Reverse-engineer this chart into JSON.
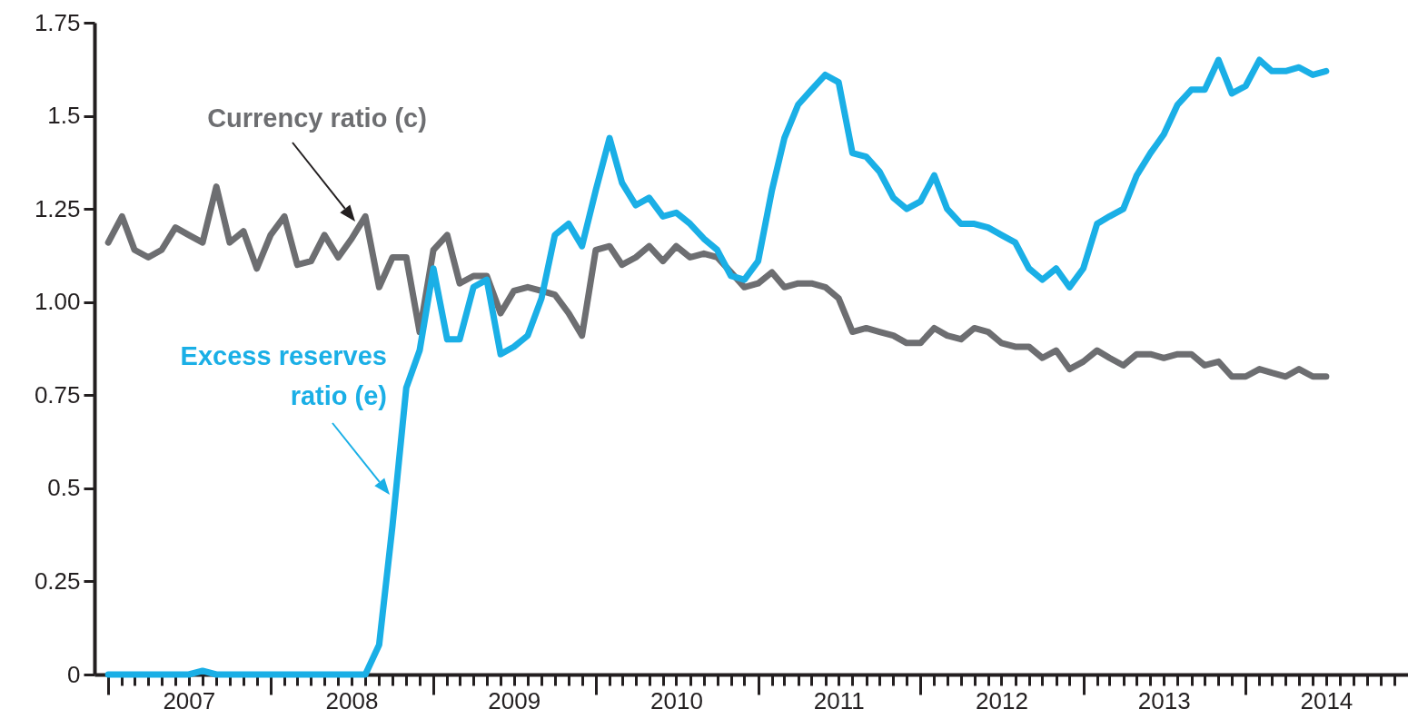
{
  "chart_data": {
    "type": "line",
    "marker": "none",
    "line_style": "solid",
    "x": [
      "2007-01",
      "2007-02",
      "2007-03",
      "2007-04",
      "2007-05",
      "2007-06",
      "2007-07",
      "2007-08",
      "2007-09",
      "2007-10",
      "2007-11",
      "2007-12",
      "2008-01",
      "2008-02",
      "2008-03",
      "2008-04",
      "2008-05",
      "2008-06",
      "2008-07",
      "2008-08",
      "2008-09",
      "2008-10",
      "2008-11",
      "2008-12",
      "2009-01",
      "2009-02",
      "2009-03",
      "2009-04",
      "2009-05",
      "2009-06",
      "2009-07",
      "2009-08",
      "2009-09",
      "2009-10",
      "2009-11",
      "2009-12",
      "2010-01",
      "2010-02",
      "2010-03",
      "2010-04",
      "2010-05",
      "2010-06",
      "2010-07",
      "2010-08",
      "2010-09",
      "2010-10",
      "2010-11",
      "2010-12",
      "2011-01",
      "2011-02",
      "2011-03",
      "2011-04",
      "2011-05",
      "2011-06",
      "2011-07",
      "2011-08",
      "2011-09",
      "2011-10",
      "2011-11",
      "2011-12",
      "2012-01",
      "2012-02",
      "2012-03",
      "2012-04",
      "2012-05",
      "2012-06",
      "2012-07",
      "2012-08",
      "2012-09",
      "2012-10",
      "2012-11",
      "2012-12",
      "2013-01",
      "2013-02",
      "2013-03",
      "2013-04",
      "2013-05",
      "2013-06",
      "2013-07",
      "2013-08",
      "2013-09",
      "2013-10",
      "2013-11",
      "2013-12",
      "2014-01",
      "2014-02",
      "2014-03",
      "2014-04",
      "2014-05",
      "2014-06",
      "2014-07"
    ],
    "series": [
      {
        "name": "Currency ratio (c)",
        "color": "#6d6e71",
        "values": [
          1.16,
          1.23,
          1.14,
          1.12,
          1.14,
          1.2,
          1.18,
          1.16,
          1.31,
          1.16,
          1.19,
          1.09,
          1.18,
          1.23,
          1.1,
          1.11,
          1.18,
          1.12,
          1.17,
          1.23,
          1.04,
          1.12,
          1.12,
          0.92,
          1.14,
          1.18,
          1.05,
          1.07,
          1.07,
          0.97,
          1.03,
          1.04,
          1.03,
          1.02,
          0.97,
          0.91,
          1.14,
          1.15,
          1.1,
          1.12,
          1.15,
          1.11,
          1.15,
          1.12,
          1.13,
          1.12,
          1.08,
          1.04,
          1.05,
          1.08,
          1.04,
          1.05,
          1.05,
          1.04,
          1.01,
          0.92,
          0.93,
          0.92,
          0.91,
          0.89,
          0.89,
          0.93,
          0.91,
          0.9,
          0.93,
          0.92,
          0.89,
          0.88,
          0.88,
          0.85,
          0.87,
          0.82,
          0.84,
          0.87,
          0.85,
          0.83,
          0.86,
          0.86,
          0.85,
          0.86,
          0.86,
          0.83,
          0.84,
          0.8,
          0.8,
          0.82,
          0.81,
          0.8,
          0.82,
          0.8,
          0.8
        ]
      },
      {
        "name": "Excess reserves ratio (e)",
        "color": "#1aafe6",
        "values": [
          0,
          0,
          0,
          0,
          0,
          0,
          0,
          0.01,
          0,
          0,
          0,
          0,
          0,
          0,
          0,
          0,
          0,
          0,
          0,
          0,
          0.08,
          0.4,
          0.77,
          0.87,
          1.09,
          0.9,
          0.9,
          1.04,
          1.06,
          0.86,
          0.88,
          0.91,
          1.01,
          1.18,
          1.21,
          1.15,
          1.3,
          1.44,
          1.32,
          1.26,
          1.28,
          1.23,
          1.24,
          1.21,
          1.17,
          1.14,
          1.07,
          1.06,
          1.11,
          1.3,
          1.44,
          1.53,
          1.57,
          1.61,
          1.59,
          1.4,
          1.39,
          1.35,
          1.28,
          1.25,
          1.27,
          1.34,
          1.25,
          1.21,
          1.21,
          1.2,
          1.18,
          1.16,
          1.09,
          1.06,
          1.09,
          1.04,
          1.09,
          1.21,
          1.23,
          1.25,
          1.34,
          1.4,
          1.45,
          1.53,
          1.57,
          1.57,
          1.65,
          1.56,
          1.58,
          1.65,
          1.62,
          1.62,
          1.63,
          1.61,
          1.62
        ]
      }
    ],
    "xlim": [
      "2006-12",
      "2015-01"
    ],
    "xticks": [
      {
        "value": "2007-01",
        "label": null
      },
      {
        "value": "2007-02",
        "label": null
      },
      {
        "value": "2007-03",
        "label": null
      },
      {
        "value": "2007-04",
        "label": null
      },
      {
        "value": "2007-05",
        "label": null
      },
      {
        "value": "2007-06",
        "label": null
      },
      {
        "value": "2007-07",
        "label": "2007"
      },
      {
        "value": "2007-08",
        "label": null
      },
      {
        "value": "2007-09",
        "label": null
      },
      {
        "value": "2007-10",
        "label": null
      },
      {
        "value": "2007-11",
        "label": null
      },
      {
        "value": "2007-12",
        "label": null
      },
      {
        "value": "2008-01",
        "label": null
      },
      {
        "value": "2008-02",
        "label": null
      },
      {
        "value": "2008-03",
        "label": null
      },
      {
        "value": "2008-04",
        "label": null
      },
      {
        "value": "2008-05",
        "label": null
      },
      {
        "value": "2008-06",
        "label": null
      },
      {
        "value": "2008-07",
        "label": "2008"
      },
      {
        "value": "2008-08",
        "label": null
      },
      {
        "value": "2008-09",
        "label": null
      },
      {
        "value": "2008-10",
        "label": null
      },
      {
        "value": "2008-11",
        "label": null
      },
      {
        "value": "2008-12",
        "label": null
      },
      {
        "value": "2009-01",
        "label": null
      },
      {
        "value": "2009-02",
        "label": null
      },
      {
        "value": "2009-03",
        "label": null
      },
      {
        "value": "2009-04",
        "label": null
      },
      {
        "value": "2009-05",
        "label": null
      },
      {
        "value": "2009-06",
        "label": null
      },
      {
        "value": "2009-07",
        "label": "2009"
      },
      {
        "value": "2009-08",
        "label": null
      },
      {
        "value": "2009-09",
        "label": null
      },
      {
        "value": "2009-10",
        "label": null
      },
      {
        "value": "2009-11",
        "label": null
      },
      {
        "value": "2009-12",
        "label": null
      },
      {
        "value": "2010-01",
        "label": null
      },
      {
        "value": "2010-02",
        "label": null
      },
      {
        "value": "2010-03",
        "label": null
      },
      {
        "value": "2010-04",
        "label": null
      },
      {
        "value": "2010-05",
        "label": null
      },
      {
        "value": "2010-06",
        "label": null
      },
      {
        "value": "2010-07",
        "label": "2010"
      },
      {
        "value": "2010-08",
        "label": null
      },
      {
        "value": "2010-09",
        "label": null
      },
      {
        "value": "2010-10",
        "label": null
      },
      {
        "value": "2010-11",
        "label": null
      },
      {
        "value": "2010-12",
        "label": null
      },
      {
        "value": "2011-01",
        "label": null
      },
      {
        "value": "2011-02",
        "label": null
      },
      {
        "value": "2011-03",
        "label": null
      },
      {
        "value": "2011-04",
        "label": null
      },
      {
        "value": "2011-05",
        "label": null
      },
      {
        "value": "2011-06",
        "label": null
      },
      {
        "value": "2011-07",
        "label": "2011"
      },
      {
        "value": "2011-08",
        "label": null
      },
      {
        "value": "2011-09",
        "label": null
      },
      {
        "value": "2011-10",
        "label": null
      },
      {
        "value": "2011-11",
        "label": null
      },
      {
        "value": "2011-12",
        "label": null
      },
      {
        "value": "2012-01",
        "label": null
      },
      {
        "value": "2012-02",
        "label": null
      },
      {
        "value": "2012-03",
        "label": null
      },
      {
        "value": "2012-04",
        "label": null
      },
      {
        "value": "2012-05",
        "label": null
      },
      {
        "value": "2012-06",
        "label": null
      },
      {
        "value": "2012-07",
        "label": "2012"
      },
      {
        "value": "2012-08",
        "label": null
      },
      {
        "value": "2012-09",
        "label": null
      },
      {
        "value": "2012-10",
        "label": null
      },
      {
        "value": "2012-11",
        "label": null
      },
      {
        "value": "2012-12",
        "label": null
      },
      {
        "value": "2013-01",
        "label": null
      },
      {
        "value": "2013-02",
        "label": null
      },
      {
        "value": "2013-03",
        "label": null
      },
      {
        "value": "2013-04",
        "label": null
      },
      {
        "value": "2013-05",
        "label": null
      },
      {
        "value": "2013-06",
        "label": null
      },
      {
        "value": "2013-07",
        "label": "2013"
      },
      {
        "value": "2013-08",
        "label": null
      },
      {
        "value": "2013-09",
        "label": null
      },
      {
        "value": "2013-10",
        "label": null
      },
      {
        "value": "2013-11",
        "label": null
      },
      {
        "value": "2013-12",
        "label": null
      },
      {
        "value": "2014-01",
        "label": null
      },
      {
        "value": "2014-02",
        "label": null
      },
      {
        "value": "2014-03",
        "label": null
      },
      {
        "value": "2014-04",
        "label": null
      },
      {
        "value": "2014-05",
        "label": null
      },
      {
        "value": "2014-06",
        "label": null
      },
      {
        "value": "2014-07",
        "label": "2014"
      },
      {
        "value": "2014-08",
        "label": null
      },
      {
        "value": "2014-09",
        "label": null
      },
      {
        "value": "2014-10",
        "label": null
      },
      {
        "value": "2014-11",
        "label": null
      },
      {
        "value": "2014-12",
        "label": null
      }
    ],
    "ylim": [
      0,
      1.75
    ],
    "yticks": [
      0,
      0.25,
      0.5,
      0.75,
      {
        "value": 1,
        "label": "1.00"
      },
      1.25,
      1.5,
      1.75
    ]
  }
}
